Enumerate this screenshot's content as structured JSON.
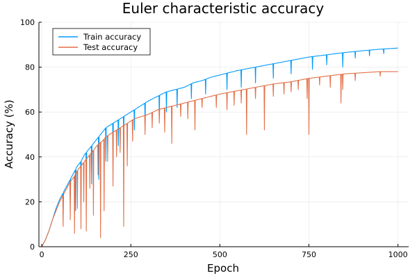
{
  "chart_data": {
    "type": "line",
    "title": "Euler characteristic accuracy",
    "xlabel": "Epoch",
    "ylabel": "Accuracy (%)",
    "xlim": [
      -8,
      1030
    ],
    "ylim": [
      0,
      100
    ],
    "xticks": [
      0,
      250,
      500,
      750,
      1000
    ],
    "yticks": [
      0,
      20,
      40,
      60,
      80,
      100
    ],
    "grid": true,
    "legend_position": "top-left",
    "series": [
      {
        "name": "Train accuracy",
        "color": "#009AFA",
        "points": [
          [
            0,
            0
          ],
          [
            10,
            3
          ],
          [
            20,
            7
          ],
          [
            30,
            12
          ],
          [
            40,
            17
          ],
          [
            50,
            21
          ],
          [
            60,
            24
          ],
          [
            70,
            27
          ],
          [
            80,
            30
          ],
          [
            90,
            33
          ],
          [
            100,
            36
          ],
          [
            110,
            38
          ],
          [
            120,
            41
          ],
          [
            130,
            43
          ],
          [
            140,
            45
          ],
          [
            150,
            47
          ],
          [
            160,
            49
          ],
          [
            170,
            51
          ],
          [
            180,
            53
          ],
          [
            190,
            54
          ],
          [
            200,
            55
          ],
          [
            210,
            56
          ],
          [
            220,
            57
          ],
          [
            230,
            58
          ],
          [
            240,
            59
          ],
          [
            250,
            60
          ],
          [
            260,
            61
          ],
          [
            270,
            62
          ],
          [
            280,
            63
          ],
          [
            290,
            64
          ],
          [
            300,
            65
          ],
          [
            325,
            67
          ],
          [
            350,
            69
          ],
          [
            375,
            70
          ],
          [
            400,
            71
          ],
          [
            425,
            73
          ],
          [
            450,
            74
          ],
          [
            475,
            75.5
          ],
          [
            500,
            76.5
          ],
          [
            550,
            78.5
          ],
          [
            600,
            80
          ],
          [
            650,
            81.5
          ],
          [
            700,
            83
          ],
          [
            750,
            84.5
          ],
          [
            800,
            85.5
          ],
          [
            850,
            86.5
          ],
          [
            900,
            87.3
          ],
          [
            950,
            88
          ],
          [
            1000,
            88.5
          ]
        ],
        "dips": [
          [
            60,
            14
          ],
          [
            80,
            20
          ],
          [
            95,
            16
          ],
          [
            110,
            20
          ],
          [
            125,
            22
          ],
          [
            140,
            28
          ],
          [
            160,
            30
          ],
          [
            180,
            38
          ],
          [
            200,
            40
          ],
          [
            215,
            45
          ],
          [
            230,
            50
          ],
          [
            260,
            52
          ],
          [
            290,
            55
          ],
          [
            330,
            58
          ],
          [
            350,
            60
          ],
          [
            380,
            62
          ],
          [
            420,
            66
          ],
          [
            460,
            68
          ],
          [
            520,
            70
          ],
          [
            560,
            71
          ],
          [
            600,
            73
          ],
          [
            650,
            75
          ],
          [
            700,
            77
          ],
          [
            760,
            79
          ],
          [
            800,
            81
          ],
          [
            845,
            80
          ],
          [
            880,
            84
          ],
          [
            920,
            85
          ],
          [
            960,
            86
          ]
        ]
      },
      {
        "name": "Test accuracy",
        "color": "#E26F46",
        "points": [
          [
            0,
            0
          ],
          [
            10,
            3
          ],
          [
            20,
            7
          ],
          [
            30,
            12
          ],
          [
            40,
            16
          ],
          [
            50,
            20
          ],
          [
            60,
            23
          ],
          [
            70,
            26
          ],
          [
            80,
            29
          ],
          [
            90,
            31
          ],
          [
            100,
            34
          ],
          [
            110,
            36
          ],
          [
            120,
            38
          ],
          [
            130,
            40
          ],
          [
            140,
            42
          ],
          [
            150,
            44
          ],
          [
            160,
            46
          ],
          [
            170,
            47
          ],
          [
            180,
            49
          ],
          [
            190,
            50
          ],
          [
            200,
            51
          ],
          [
            210,
            52
          ],
          [
            220,
            53
          ],
          [
            230,
            54
          ],
          [
            240,
            55
          ],
          [
            250,
            56
          ],
          [
            260,
            57
          ],
          [
            270,
            57.5
          ],
          [
            280,
            58
          ],
          [
            290,
            58.5
          ],
          [
            300,
            59
          ],
          [
            325,
            61
          ],
          [
            350,
            62
          ],
          [
            375,
            63
          ],
          [
            400,
            64
          ],
          [
            425,
            65
          ],
          [
            450,
            66
          ],
          [
            475,
            67
          ],
          [
            500,
            68
          ],
          [
            550,
            69.5
          ],
          [
            600,
            71
          ],
          [
            650,
            72.5
          ],
          [
            700,
            73.5
          ],
          [
            750,
            75
          ],
          [
            800,
            76
          ],
          [
            850,
            77
          ],
          [
            900,
            77.5
          ],
          [
            950,
            78
          ],
          [
            1000,
            78
          ]
        ],
        "dips": [
          [
            60,
            9
          ],
          [
            80,
            12
          ],
          [
            92,
            6
          ],
          [
            100,
            17
          ],
          [
            110,
            8
          ],
          [
            118,
            20
          ],
          [
            125,
            7
          ],
          [
            135,
            26
          ],
          [
            145,
            14
          ],
          [
            158,
            32
          ],
          [
            165,
            4
          ],
          [
            175,
            16
          ],
          [
            185,
            38
          ],
          [
            200,
            27
          ],
          [
            210,
            40
          ],
          [
            220,
            42
          ],
          [
            230,
            9
          ],
          [
            240,
            36
          ],
          [
            255,
            47
          ],
          [
            290,
            50
          ],
          [
            310,
            53
          ],
          [
            330,
            55
          ],
          [
            345,
            51
          ],
          [
            365,
            46
          ],
          [
            390,
            58
          ],
          [
            410,
            57
          ],
          [
            430,
            52
          ],
          [
            450,
            62
          ],
          [
            490,
            62
          ],
          [
            520,
            61
          ],
          [
            540,
            63
          ],
          [
            560,
            64
          ],
          [
            575,
            50
          ],
          [
            600,
            66
          ],
          [
            625,
            52
          ],
          [
            650,
            67
          ],
          [
            680,
            68
          ],
          [
            700,
            69
          ],
          [
            720,
            70
          ],
          [
            745,
            66
          ],
          [
            750,
            50
          ],
          [
            780,
            72
          ],
          [
            810,
            71
          ],
          [
            840,
            64
          ],
          [
            845,
            70
          ],
          [
            880,
            74
          ],
          [
            950,
            76
          ]
        ]
      }
    ]
  }
}
